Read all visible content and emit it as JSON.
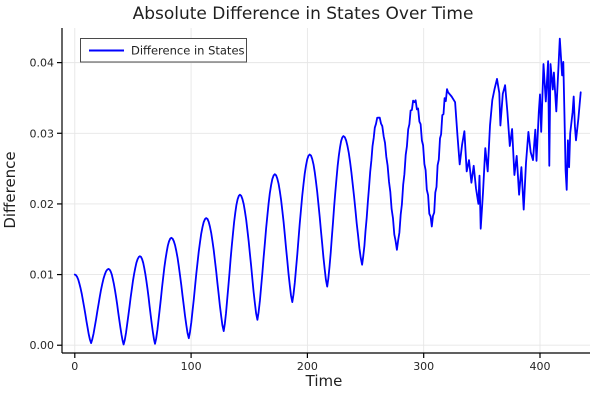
{
  "title": "Absolute Difference in States Over Time",
  "colors": {
    "line": "#0000ff",
    "grid": "#e6e6e6",
    "axis": "#000000",
    "tick_text": "#262626",
    "title_text": "#1f1f1f",
    "legend_border": "#4a4a4a",
    "background": "#ffffff"
  },
  "legend": {
    "label": "Difference in States"
  },
  "axis": {
    "xlabel": "Time",
    "ylabel": "Difference",
    "xtick_labels": [
      "0",
      "100",
      "200",
      "300",
      "400"
    ],
    "ytick_labels": [
      "0.00",
      "0.01",
      "0.02",
      "0.03",
      "0.04"
    ]
  },
  "chart_data": {
    "type": "line",
    "title": "Absolute Difference in States Over Time",
    "xlabel": "Time",
    "ylabel": "Difference",
    "xlim": [
      -11,
      443
    ],
    "ylim": [
      -0.0011,
      0.0449
    ],
    "xticks": [
      0,
      100,
      200,
      300,
      400
    ],
    "yticks": [
      0.0,
      0.01,
      0.02,
      0.03,
      0.04
    ],
    "grid": true,
    "legend_position": "top-left",
    "series": [
      {
        "name": "Difference in States",
        "color": "#0000ff",
        "style": "solid",
        "smooth_until_t": 321,
        "noise": {
          "start_t": 238,
          "amp": 0.0006
        },
        "points": [
          [
            0,
            0.01
          ],
          [
            14,
            0.0003
          ],
          [
            29,
            0.0108
          ],
          [
            42,
            0.0001
          ],
          [
            56,
            0.0126
          ],
          [
            69,
            0.0002
          ],
          [
            83,
            0.0152
          ],
          [
            98,
            0.001
          ],
          [
            113,
            0.018
          ],
          [
            128,
            0.002
          ],
          [
            142,
            0.0213
          ],
          [
            157,
            0.0036
          ],
          [
            172,
            0.0242
          ],
          [
            187,
            0.0061
          ],
          [
            202,
            0.027
          ],
          [
            217,
            0.0083
          ],
          [
            231,
            0.0296
          ],
          [
            247,
            0.0114
          ],
          [
            261,
            0.0322
          ],
          [
            277,
            0.0135
          ],
          [
            292,
            0.0344
          ],
          [
            307,
            0.0168
          ],
          [
            321,
            0.0358
          ],
          [
            324,
            0.0352
          ],
          [
            327,
            0.0344
          ],
          [
            329,
            0.0298
          ],
          [
            331,
            0.0256
          ],
          [
            333,
            0.0284
          ],
          [
            335,
            0.0303
          ],
          [
            337,
            0.0246
          ],
          [
            339,
            0.0262
          ],
          [
            341,
            0.023
          ],
          [
            343,
            0.0254
          ],
          [
            345,
            0.0222
          ],
          [
            347,
            0.02
          ],
          [
            348,
            0.024
          ],
          [
            349,
            0.0165
          ],
          [
            351,
            0.0216
          ],
          [
            353,
            0.0279
          ],
          [
            355,
            0.0246
          ],
          [
            357,
            0.0311
          ],
          [
            359,
            0.0347
          ],
          [
            361,
            0.0363
          ],
          [
            363,
            0.0377
          ],
          [
            365,
            0.0357
          ],
          [
            366,
            0.0311
          ],
          [
            368,
            0.0356
          ],
          [
            370,
            0.0368
          ],
          [
            372,
            0.033
          ],
          [
            374,
            0.0282
          ],
          [
            376,
            0.0306
          ],
          [
            378,
            0.0241
          ],
          [
            380,
            0.0268
          ],
          [
            382,
            0.0213
          ],
          [
            384,
            0.0252
          ],
          [
            386,
            0.0192
          ],
          [
            388,
            0.0258
          ],
          [
            390,
            0.0302
          ],
          [
            392,
            0.0273
          ],
          [
            394,
            0.0262
          ],
          [
            396,
            0.0305
          ],
          [
            397,
            0.0261
          ],
          [
            399,
            0.033
          ],
          [
            400,
            0.0355
          ],
          [
            401,
            0.0302
          ],
          [
            403,
            0.0398
          ],
          [
            405,
            0.0345
          ],
          [
            407,
            0.0402
          ],
          [
            408,
            0.0254
          ],
          [
            409,
            0.0398
          ],
          [
            411,
            0.0362
          ],
          [
            412,
            0.0386
          ],
          [
            414,
            0.0331
          ],
          [
            416,
            0.0398
          ],
          [
            417,
            0.0434
          ],
          [
            419,
            0.0382
          ],
          [
            420,
            0.0401
          ],
          [
            421,
            0.033
          ],
          [
            422,
            0.0247
          ],
          [
            423,
            0.022
          ],
          [
            424,
            0.029
          ],
          [
            425,
            0.0252
          ],
          [
            426,
            0.03
          ],
          [
            428,
            0.033
          ],
          [
            429,
            0.0352
          ],
          [
            430,
            0.031
          ],
          [
            431,
            0.029
          ],
          [
            433,
            0.0321
          ],
          [
            435,
            0.0358
          ]
        ]
      }
    ]
  }
}
